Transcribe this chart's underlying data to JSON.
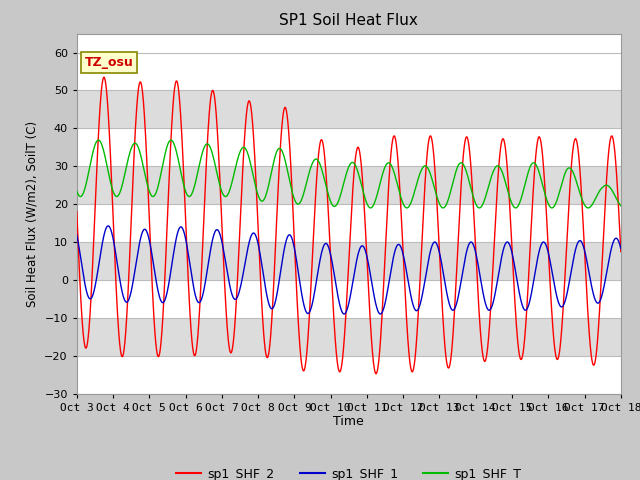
{
  "title": "SP1 Soil Heat Flux",
  "ylabel": "Soil Heat Flux (W/m2), SoilT (C)",
  "xlabel": "Time",
  "xlim_start": 0,
  "xlim_end": 15,
  "ylim": [
    -30,
    65
  ],
  "yticks": [
    -30,
    -20,
    -10,
    0,
    10,
    20,
    30,
    40,
    50,
    60
  ],
  "xtick_labels": [
    "Oct 3",
    "Oct 4",
    "Oct 5",
    "Oct 6",
    "Oct 7",
    "Oct 8",
    "Oct 9",
    "Oct 10",
    "Oct 11",
    "Oct 12",
    "Oct 13",
    "Oct 14",
    "Oct 15",
    "Oct 16",
    "Oct 17",
    "Oct 18"
  ],
  "xtick_positions": [
    0,
    1,
    2,
    3,
    4,
    5,
    6,
    7,
    8,
    9,
    10,
    11,
    12,
    13,
    14,
    15
  ],
  "color_red": "#FF0000",
  "color_blue": "#0000CC",
  "color_green": "#00BB00",
  "legend_labels": [
    "sp1_SHF_2",
    "sp1_SHF_1",
    "sp1_SHF_T"
  ],
  "annotation_text": "TZ_osu",
  "fig_bg": "#C8C8C8",
  "band_light": "#FFFFFF",
  "band_dark": "#DCDCDC",
  "grid_line_color": "#BBBBBB",
  "peak_times": [
    0.5,
    1.5,
    2.5,
    3.5,
    4.5,
    5.5,
    6.5,
    7.5,
    8.5,
    9.5,
    10.5,
    11.5,
    12.5,
    13.5,
    14.5
  ],
  "peak_vals_red": [
    54,
    52,
    53,
    51,
    47,
    48,
    38,
    34,
    38,
    38,
    38,
    37,
    38,
    37,
    38
  ],
  "trough_vals_red": [
    -18,
    -21,
    -20,
    -20,
    -19,
    -21,
    -25,
    -24,
    -25,
    -24,
    -23,
    -21,
    -21,
    -21,
    -23
  ],
  "peak_vals_blue": [
    15,
    13,
    14,
    14,
    12,
    13,
    10,
    9,
    9,
    10,
    10,
    10,
    10,
    10,
    11
  ],
  "trough_vals_blue": [
    -5,
    -6,
    -6,
    -6,
    -5,
    -8,
    -9,
    -9,
    -9,
    -8,
    -8,
    -8,
    -8,
    -7,
    -6
  ],
  "peak_vals_green": [
    37,
    36,
    37,
    36,
    35,
    35,
    32,
    31,
    31,
    30,
    31,
    30,
    31,
    30,
    25
  ],
  "trough_vals_green": [
    22,
    22,
    22,
    22,
    22,
    20,
    20,
    19,
    19,
    19,
    19,
    19,
    19,
    19,
    19
  ],
  "red_phase": 0.5,
  "blue_phase": 0.62,
  "green_phase": 0.35,
  "red_midphase": 0.0,
  "blue_midphase": 0.0,
  "green_midphase": 0.0
}
